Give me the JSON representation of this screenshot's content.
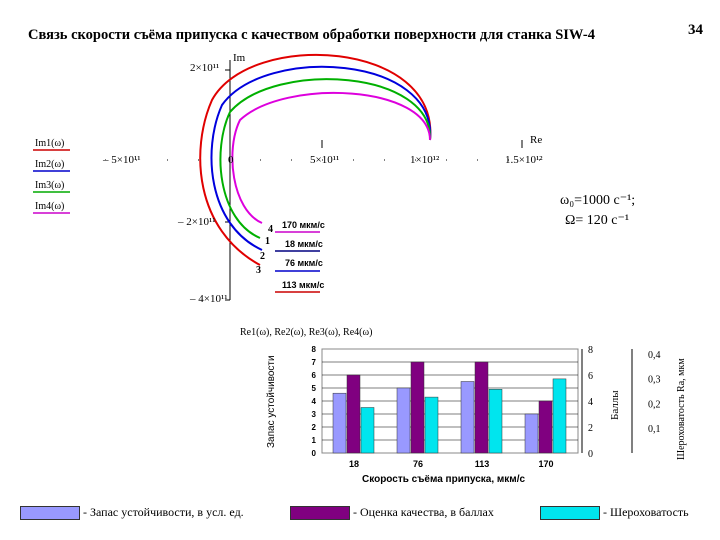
{
  "header": {
    "title": "Связь скорости съёма припуска с качеством обработки поверхности для станка SIW-4",
    "page_number": "34"
  },
  "nyquist": {
    "im_axis_label": "Im",
    "re_axis_label": "Re",
    "y_ticks": [
      "2×10¹¹",
      "– 2×10¹¹",
      "– 4×10¹¹"
    ],
    "x_ticks": [
      "– 5×10¹¹",
      "0",
      "5×10¹¹",
      "1×10¹²",
      "1.5×10¹²"
    ],
    "left_legend": [
      "Im1(ω)",
      "Im2(ω)",
      "Im3(ω)",
      "Im4(ω)"
    ],
    "left_legend_colors": [
      "#cc0000",
      "#0000cc",
      "#00aa00",
      "#cc00cc"
    ],
    "bottom_label": "Re1(ω), Re2(ω), Re3(ω), Re4(ω)",
    "curve_labels": [
      {
        "num": "4",
        "speed": "170 мкм/с",
        "color": "#cc00cc"
      },
      {
        "num": "1",
        "speed": "18 мкм/с",
        "color": "#000080"
      },
      {
        "num": "2",
        "speed": "76 мкм/с",
        "color": "#0000cc"
      },
      {
        "num": "3",
        "speed": "113 мкм/с",
        "color": "#cc0000"
      }
    ],
    "params_line1": "ω₀=1000 с⁻¹;",
    "params_line2": "Ω= 120 с⁻¹"
  },
  "chart_data": {
    "type": "bar",
    "categories": [
      "18",
      "76",
      "113",
      "170"
    ],
    "xlabel": "Скорость съёма припуска, мкм/с",
    "ylabel": "Запас устойчивости",
    "ylim": [
      0,
      8
    ],
    "y_ticks": [
      "0",
      "1",
      "2",
      "3",
      "4",
      "5",
      "6",
      "7",
      "8"
    ],
    "right_axis1_label": "Баллы",
    "right_axis1_ticks": [
      "0",
      "2",
      "4",
      "6",
      "8"
    ],
    "right_axis2_label": "Шероховатость Ra, мкм",
    "right_axis2_ticks": [
      "0,1",
      "0,2",
      "0,3",
      "0,4"
    ],
    "series": [
      {
        "name": "- Запас устойчивости, в усл. ед.",
        "values": [
          4.6,
          5.0,
          5.5,
          3.0
        ],
        "color": "#9999ff"
      },
      {
        "name": "- Оценка качества, в баллах",
        "values": [
          6.0,
          7.0,
          7.0,
          4.0
        ],
        "color": "#800080"
      },
      {
        "name": "- Шероховатость",
        "values": [
          3.5,
          4.3,
          4.9,
          5.7
        ],
        "color": "#00e5ee"
      }
    ]
  }
}
